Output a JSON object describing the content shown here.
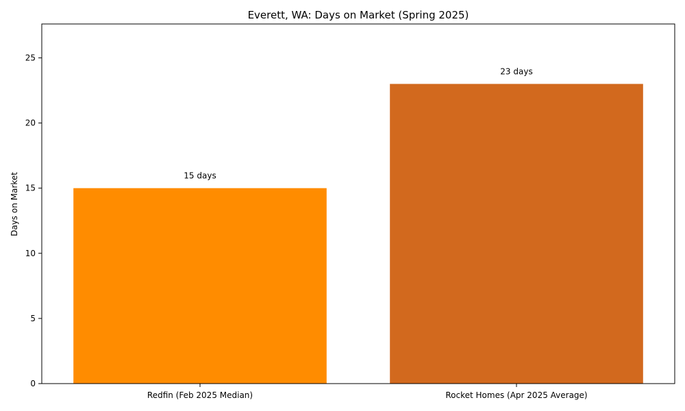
{
  "chart_data": {
    "type": "bar",
    "title": "Everett, WA: Days on Market (Spring 2025)",
    "xlabel": "",
    "ylabel": "Days on Market",
    "categories": [
      "Redfin (Feb 2025 Median)",
      "Rocket Homes (Apr 2025 Average)"
    ],
    "values": [
      15,
      23
    ],
    "value_labels": [
      "15 days",
      "23 days"
    ],
    "colors": [
      "#FF8C00",
      "#D2691E"
    ],
    "ylim": [
      0,
      27.6
    ],
    "yticks": [
      0,
      5,
      10,
      15,
      20,
      25
    ],
    "grid": false,
    "legend": "none"
  }
}
